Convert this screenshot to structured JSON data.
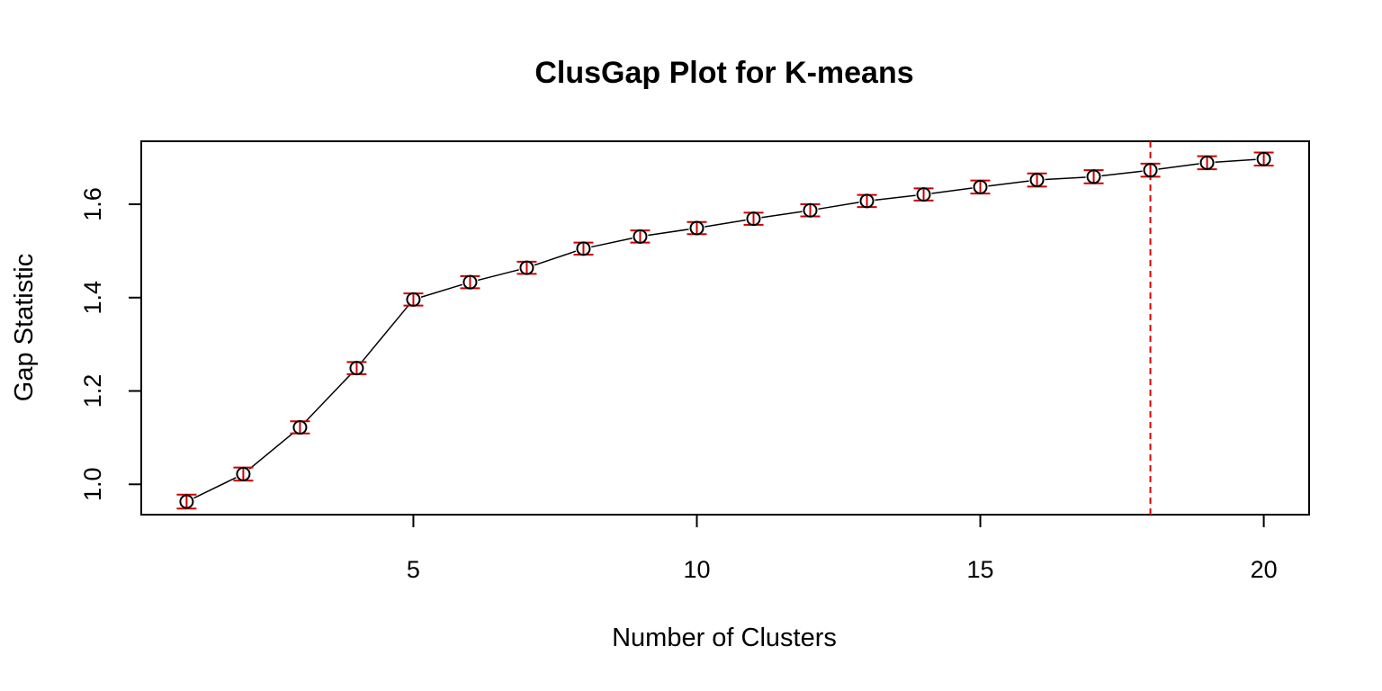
{
  "chart_data": {
    "type": "line",
    "title": "ClusGap Plot for K-means",
    "xlabel": "Number of Clusters",
    "ylabel": "Gap Statistic",
    "x": [
      1,
      2,
      3,
      4,
      5,
      6,
      7,
      8,
      9,
      10,
      11,
      12,
      13,
      14,
      15,
      16,
      17,
      18,
      19,
      20
    ],
    "series": [
      {
        "values": [
          0.963,
          1.022,
          1.122,
          1.249,
          1.396,
          1.433,
          1.464,
          1.505,
          1.531,
          1.549,
          1.569,
          1.587,
          1.607,
          1.621,
          1.637,
          1.652,
          1.659,
          1.673,
          1.689,
          1.697
        ],
        "se": [
          0.015,
          0.014,
          0.013,
          0.013,
          0.013,
          0.013,
          0.013,
          0.013,
          0.013,
          0.013,
          0.013,
          0.013,
          0.013,
          0.013,
          0.014,
          0.014,
          0.014,
          0.014,
          0.014,
          0.014
        ]
      }
    ],
    "xlim": [
      0.2,
      20.8
    ],
    "ylim": [
      0.935,
      1.735
    ],
    "x_ticks": [
      5,
      10,
      15,
      20
    ],
    "y_ticks": [
      1.0,
      1.2,
      1.4,
      1.6
    ],
    "x_tick_labels": [
      "5",
      "10",
      "15",
      "20"
    ],
    "y_tick_labels": [
      "1.0",
      "1.2",
      "1.4",
      "1.6"
    ],
    "optimal_k": 18,
    "grid": false,
    "colors": {
      "line": "#000000",
      "points": "#000000",
      "error_bars": "#cc0000",
      "optimal_line": "#dd0000"
    }
  }
}
